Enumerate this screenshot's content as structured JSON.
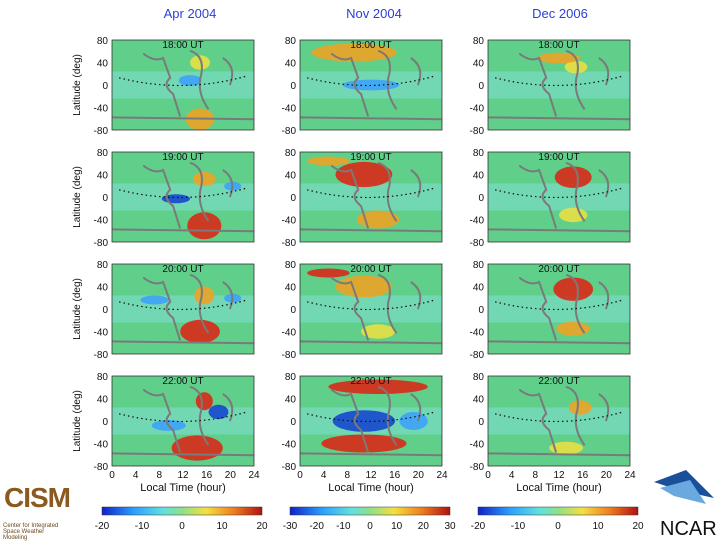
{
  "columns": [
    {
      "title": "Apr 2004",
      "colorbar_ticks": [
        "-20",
        "-10",
        "0",
        "10",
        "20"
      ]
    },
    {
      "title": "Nov 2004",
      "colorbar_ticks": [
        "-30",
        "-20",
        "-10",
        "0",
        "10",
        "20",
        "30"
      ]
    },
    {
      "title": "Dec 2006",
      "colorbar_ticks": [
        "-20",
        "-10",
        "0",
        "10",
        "20"
      ]
    }
  ],
  "rows": [
    "18:00 UT",
    "19:00 UT",
    "20:00 UT",
    "22:00 UT"
  ],
  "y_axis": {
    "label": "Latitude (deg)",
    "ticks": [
      "80",
      "40",
      "0",
      "-40",
      "-80"
    ]
  },
  "x_axis": {
    "label": "Local Time (hour)",
    "ticks": [
      "0",
      "4",
      "8",
      "12",
      "16",
      "20",
      "24"
    ]
  },
  "logos": {
    "left": "CISM",
    "left_sub": "Center for Integrated Space Weather Modeling",
    "right": "NCAR"
  },
  "colors": {
    "title": "#2b3fd6",
    "coast": "#7a7a7a"
  }
}
